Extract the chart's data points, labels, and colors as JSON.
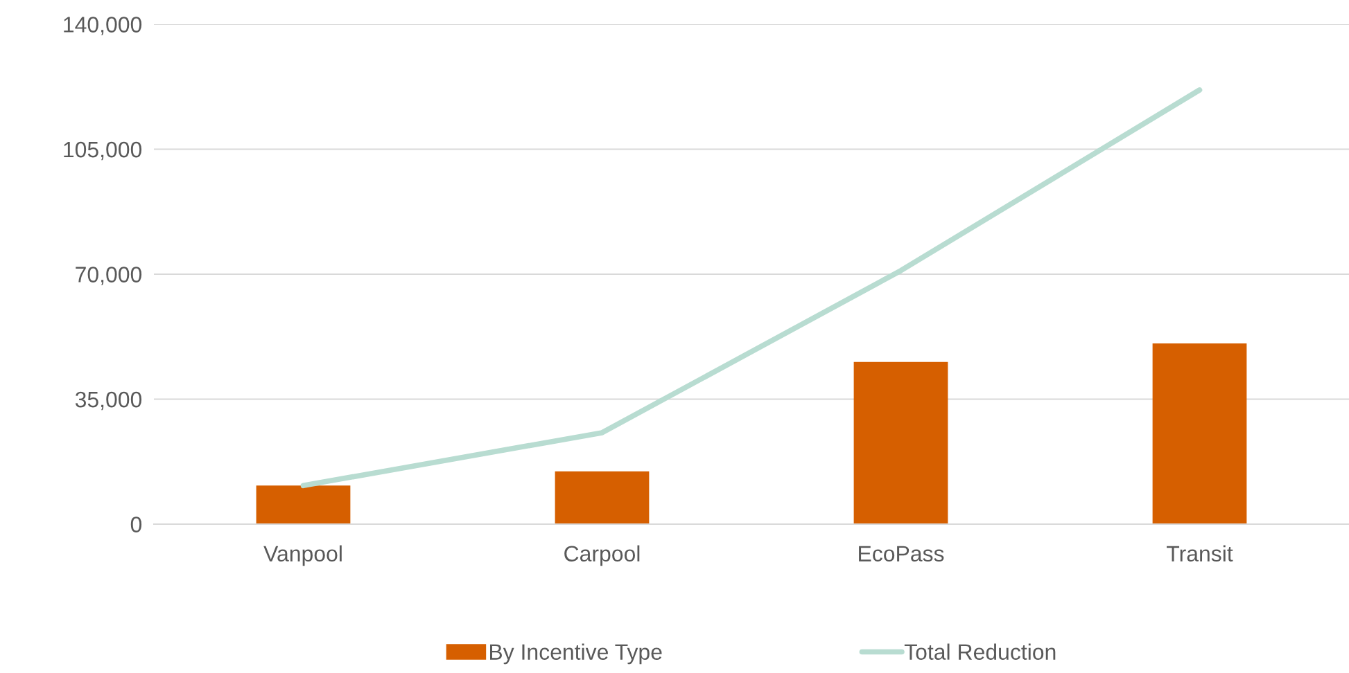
{
  "chart_data": {
    "type": "bar",
    "categories": [
      "Vanpool",
      "Carpool",
      "EcoPass",
      "Transit"
    ],
    "series": [
      {
        "name": "By Incentive Type",
        "color": "#d65f00",
        "values": [
          10800,
          14800,
          45400,
          50600
        ]
      },
      {
        "name": "Total Reduction",
        "type": "line",
        "color": "#b8dcd1",
        "values": [
          10800,
          25600,
          71000,
          121600
        ]
      }
    ],
    "ylim": [
      0,
      140000
    ],
    "yticks": [
      {
        "value": 0,
        "label": "0"
      },
      {
        "value": 35000,
        "label": "35,000"
      },
      {
        "value": 70000,
        "label": "70,000"
      },
      {
        "value": 105000,
        "label": "105,000"
      },
      {
        "value": 140000,
        "label": "140,000"
      }
    ],
    "grid": "y",
    "legend": "bottom",
    "marker": "none",
    "line_style": "solid"
  }
}
